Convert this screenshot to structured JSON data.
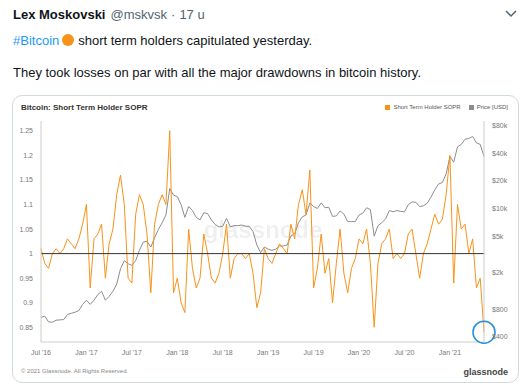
{
  "tweet": {
    "author": "Lex Moskovski",
    "handle": "@mskvsk",
    "separator": "·",
    "time": "17 u",
    "hashtag": "#Bitcoin",
    "text": [
      "short term holders capitulated yesterday.",
      "They took losses on par with all the major drawdowns in bitcoin history."
    ]
  },
  "chart_data": {
    "type": "line",
    "title": "Bitcoin: Short Term Holder SOPR",
    "watermark": "glassnode",
    "categories": [
      "Jul '16",
      null,
      null,
      null,
      null,
      null,
      null,
      null,
      null,
      null,
      null,
      null,
      "Jan '17",
      null,
      null,
      null,
      null,
      null,
      null,
      null,
      null,
      null,
      null,
      null,
      "Jul '17",
      null,
      null,
      null,
      null,
      null,
      null,
      null,
      null,
      null,
      null,
      null,
      "Jan '18",
      null,
      null,
      null,
      null,
      null,
      null,
      null,
      null,
      null,
      null,
      null,
      "Jul '18",
      null,
      null,
      null,
      null,
      null,
      null,
      null,
      null,
      null,
      null,
      null,
      "Jan '19",
      null,
      null,
      null,
      null,
      null,
      null,
      null,
      null,
      null,
      null,
      null,
      "Jul '19",
      null,
      null,
      null,
      null,
      null,
      null,
      null,
      null,
      null,
      null,
      null,
      "Jan '20",
      null,
      null,
      null,
      null,
      null,
      null,
      null,
      null,
      null,
      null,
      null,
      "Jul '20",
      null,
      null,
      null,
      null,
      null,
      null,
      null,
      null,
      null,
      null,
      null,
      "Jan '21",
      null,
      null,
      null,
      null,
      null,
      null,
      null,
      null,
      null
    ],
    "series": [
      {
        "name": "Short Term Holder SOPR",
        "color": "#f7931a",
        "values": [
          1.01,
          0.98,
          0.97,
          1.0,
          1.01,
          1.0,
          1.01,
          1.03,
          1.02,
          1.01,
          1.03,
          1.06,
          1.1,
          0.93,
          1.03,
          1.04,
          1.06,
          0.95,
          1.02,
          1.05,
          1.12,
          1.16,
          1.1,
          0.95,
          0.94,
          1.08,
          1.12,
          1.1,
          1.04,
          0.92,
          1.06,
          1.1,
          1.12,
          1.1,
          1.25,
          0.92,
          0.95,
          0.9,
          0.88,
          1.05,
          0.97,
          0.93,
          0.95,
          1.04,
          1.0,
          0.95,
          0.94,
          0.96,
          1.0,
          1.06,
          0.95,
          0.99,
          1.0,
          1.0,
          0.99,
          1.0,
          0.96,
          0.89,
          0.92,
          1.01,
          0.99,
          0.98,
          1.0,
          1.02,
          1.01,
          1.0,
          1.06,
          1.03,
          1.1,
          1.13,
          1.08,
          1.17,
          0.93,
          0.97,
          1.04,
          0.96,
          0.99,
          0.9,
          0.98,
          1.05,
          0.96,
          0.92,
          0.97,
          0.99,
          1.03,
          1.02,
          1.05,
          0.98,
          0.85,
          0.98,
          1.02,
          1.03,
          1.05,
          0.99,
          1.0,
          0.99,
          1.0,
          1.04,
          1.05,
          1.0,
          0.95,
          1.0,
          1.02,
          1.05,
          1.08,
          1.06,
          1.07,
          1.12,
          1.2,
          0.94,
          1.1,
          1.05,
          1.06,
          1.0,
          1.03,
          0.93,
          0.95,
          0.84
        ]
      },
      {
        "name": "Price [USD]",
        "color": "#8c8c8c",
        "axis": "y2",
        "values": [
          650,
          670,
          580,
          575,
          605,
          610,
          615,
          700,
          720,
          740,
          770,
          900,
          1000,
          900,
          1000,
          1150,
          1250,
          1000,
          1100,
          1250,
          1500,
          2200,
          2700,
          2500,
          2400,
          2700,
          3500,
          4300,
          4400,
          3800,
          4800,
          5900,
          7000,
          8500,
          16500,
          14000,
          13500,
          11000,
          8000,
          10500,
          9500,
          8000,
          7500,
          9000,
          8800,
          7500,
          6700,
          6300,
          6400,
          7800,
          6300,
          6500,
          6500,
          6600,
          6400,
          6400,
          5600,
          4000,
          3300,
          3800,
          3600,
          3500,
          3600,
          3900,
          3900,
          4000,
          5000,
          5300,
          7000,
          8100,
          8500,
          11500,
          10500,
          10000,
          11500,
          10200,
          10300,
          8200,
          8300,
          9400,
          8700,
          7200,
          7200,
          7200,
          8500,
          8900,
          10200,
          9700,
          5000,
          6500,
          7000,
          7700,
          9500,
          9200,
          9500,
          9300,
          9200,
          11000,
          11800,
          11700,
          10500,
          10700,
          11400,
          13300,
          16000,
          18500,
          19200,
          23800,
          37000,
          32000,
          47000,
          50000,
          57000,
          58000,
          61000,
          52000,
          50000,
          37000
        ]
      }
    ],
    "ylim": [
      0.82,
      1.27
    ],
    "yticks": [
      0.85,
      0.9,
      0.95,
      1,
      1.05,
      1.1,
      1.15,
      1.2,
      1.25
    ],
    "y2lim": [
      350,
      90000
    ],
    "y2ticks": [
      {
        "value": 400,
        "label": "$400"
      },
      {
        "value": 800,
        "label": "$800"
      },
      {
        "value": 2000,
        "label": "$2k"
      },
      {
        "value": 5000,
        "label": "$5k"
      },
      {
        "value": 10000,
        "label": "$10k"
      },
      {
        "value": 20000,
        "label": "$20k"
      },
      {
        "value": 40000,
        "label": "$40k"
      },
      {
        "value": 80000,
        "label": "$80k"
      }
    ],
    "log": "y2",
    "baseline": 1,
    "grid": false,
    "legend": "top right"
  },
  "footer": {
    "copyright": "© 2021 Glassnode. All Rights Reserved.",
    "brand": "glassnode"
  }
}
